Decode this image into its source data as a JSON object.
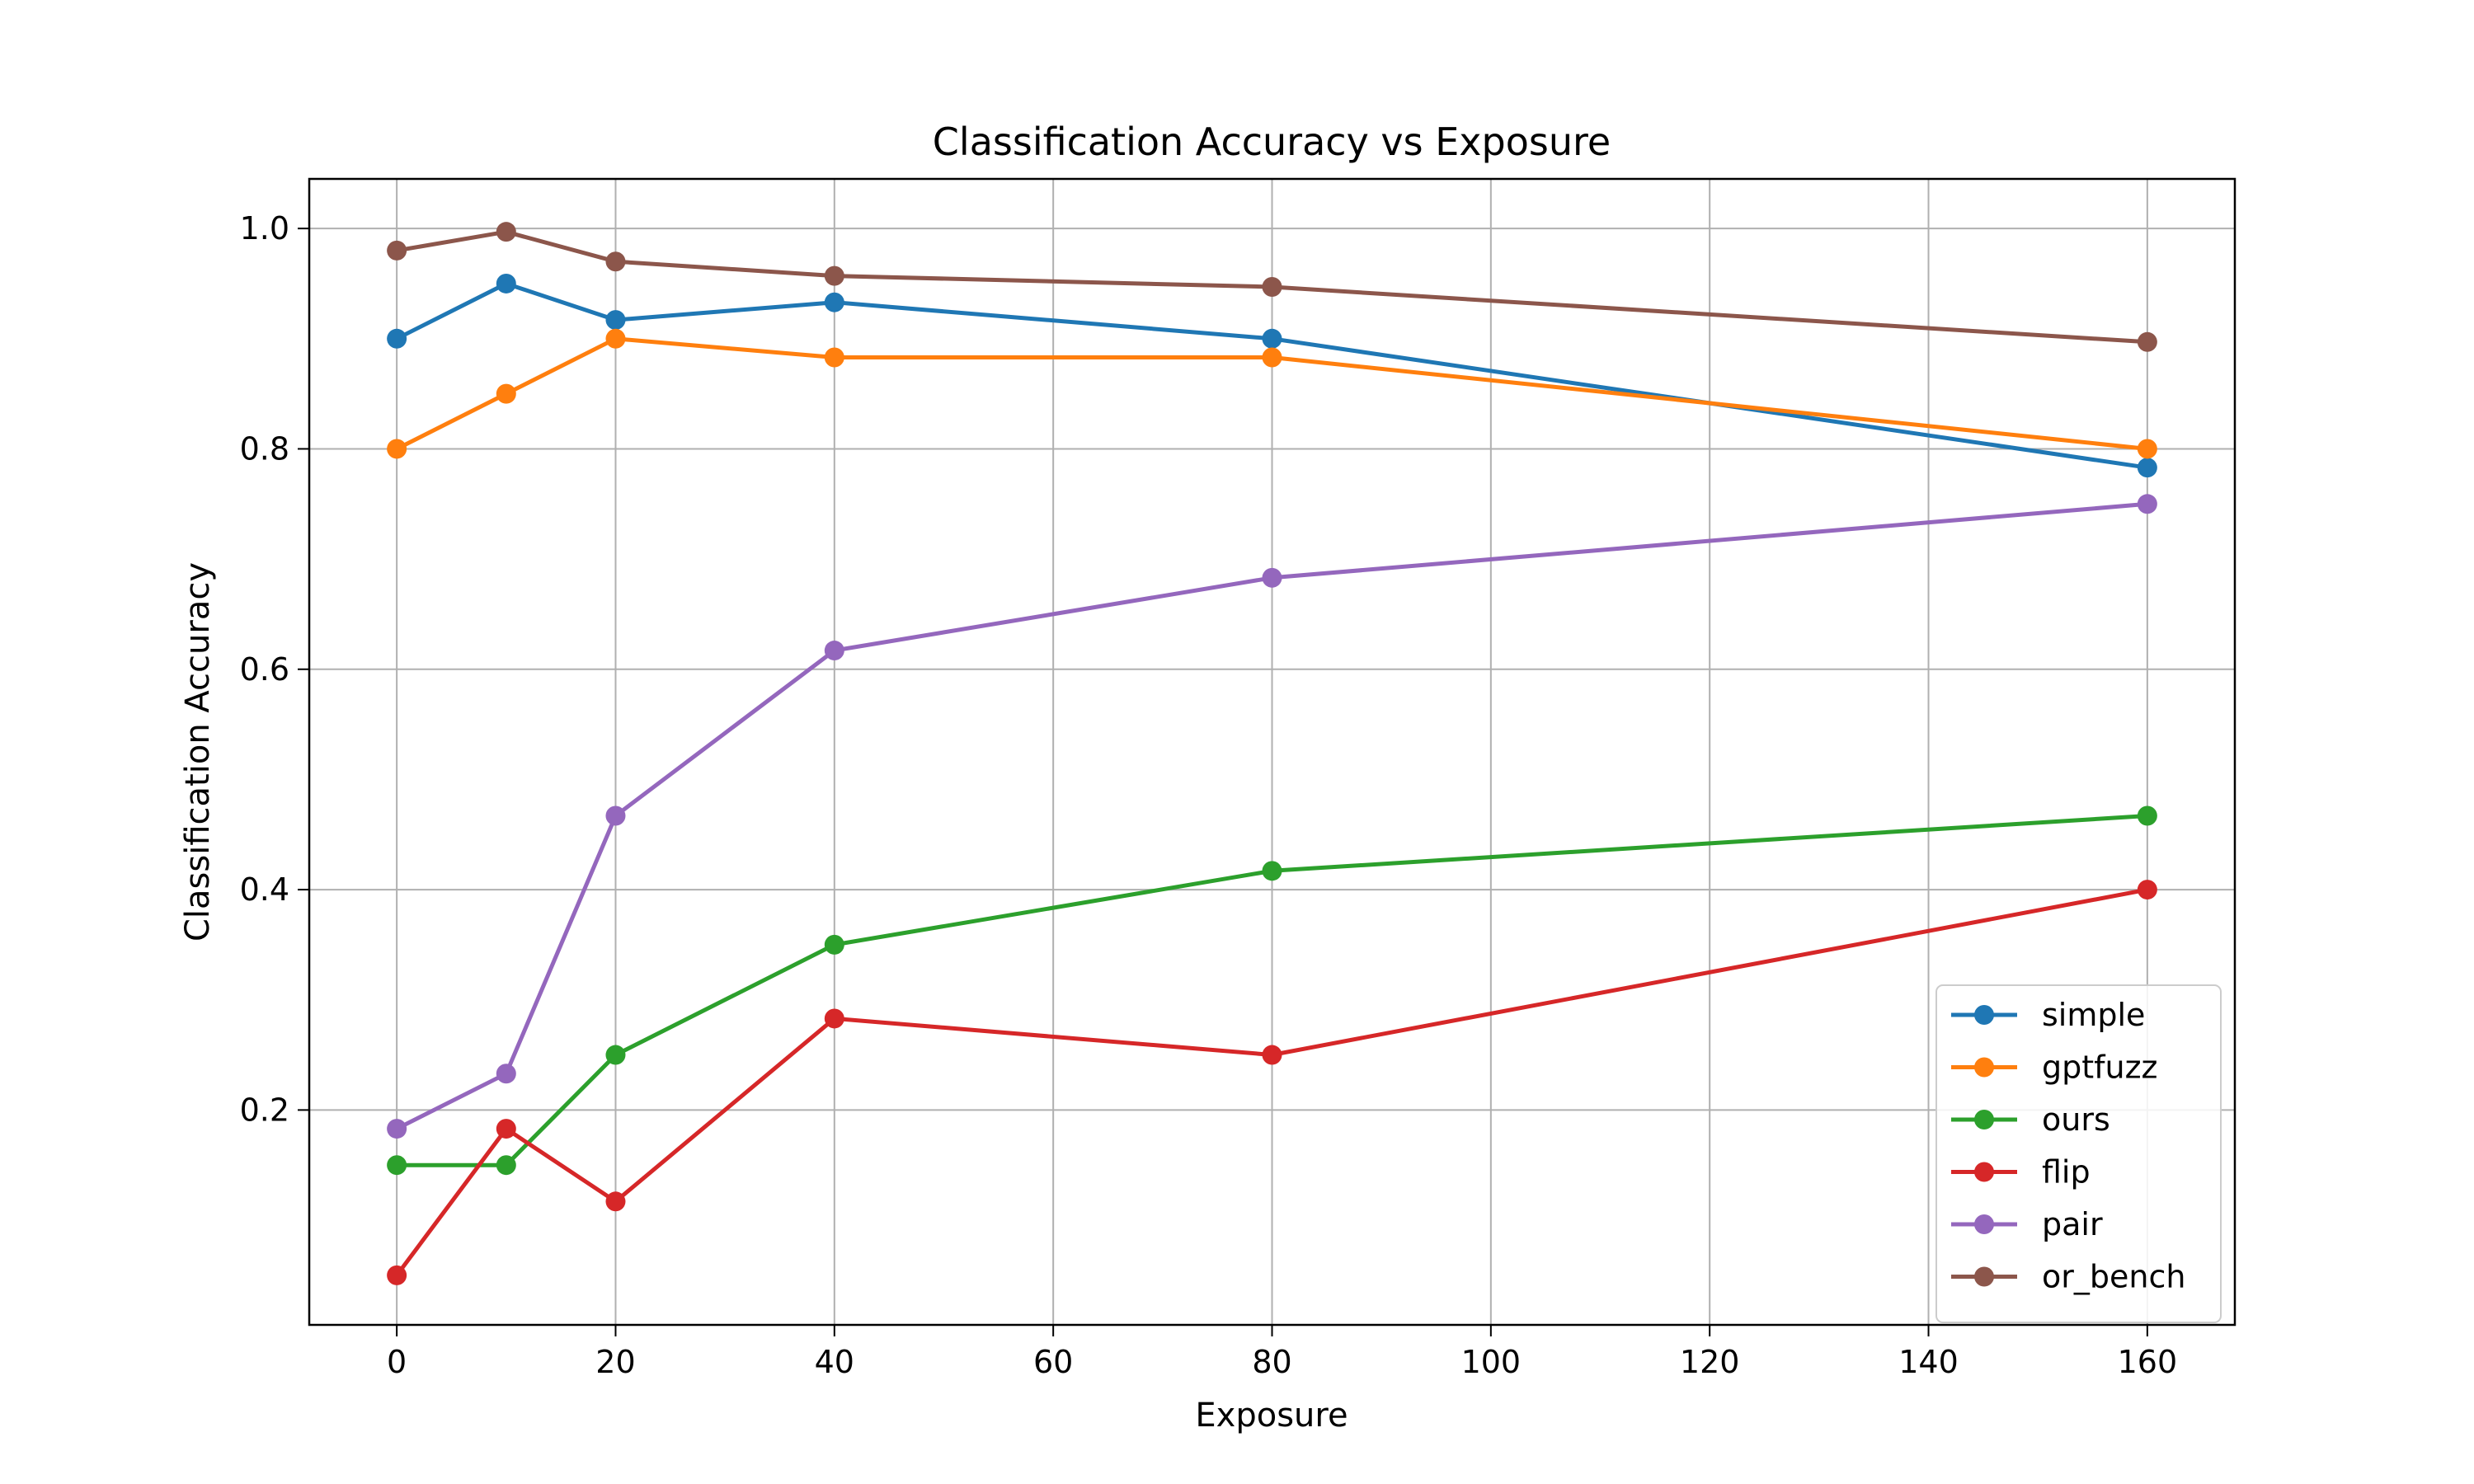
{
  "chart_data": {
    "type": "line",
    "title": "Classification Accuracy vs Exposure",
    "xlabel": "Exposure",
    "ylabel": "Classification Accuracy",
    "x": [
      0,
      10,
      20,
      40,
      80,
      160
    ],
    "xlim": [
      -8,
      168
    ],
    "ylim": [
      0.005,
      1.045
    ],
    "xticks": [
      0,
      20,
      40,
      60,
      80,
      100,
      120,
      140,
      160
    ],
    "yticks": [
      0.2,
      0.4,
      0.6,
      0.8,
      1.0
    ],
    "xtick_labels": [
      "0",
      "20",
      "40",
      "60",
      "80",
      "100",
      "120",
      "140",
      "160"
    ],
    "ytick_labels": [
      "0.2",
      "0.4",
      "0.6",
      "0.8",
      "1.0"
    ],
    "grid": true,
    "legend_position": "lower-right",
    "series": [
      {
        "name": "simple",
        "color": "#1f77b4",
        "values": [
          0.9,
          0.95,
          0.917,
          0.933,
          0.9,
          0.783
        ]
      },
      {
        "name": "gptfuzz",
        "color": "#ff7f0e",
        "values": [
          0.8,
          0.85,
          0.9,
          0.883,
          0.883,
          0.8
        ]
      },
      {
        "name": "ours",
        "color": "#2ca02c",
        "values": [
          0.15,
          0.15,
          0.25,
          0.35,
          0.417,
          0.467
        ]
      },
      {
        "name": "flip",
        "color": "#d62728",
        "values": [
          0.05,
          0.183,
          0.117,
          0.283,
          0.25,
          0.4
        ]
      },
      {
        "name": "pair",
        "color": "#9467bd",
        "values": [
          0.183,
          0.233,
          0.467,
          0.617,
          0.683,
          0.75
        ]
      },
      {
        "name": "or_bench",
        "color": "#8c564b",
        "values": [
          0.98,
          0.997,
          0.97,
          0.957,
          0.947,
          0.897
        ]
      }
    ]
  }
}
